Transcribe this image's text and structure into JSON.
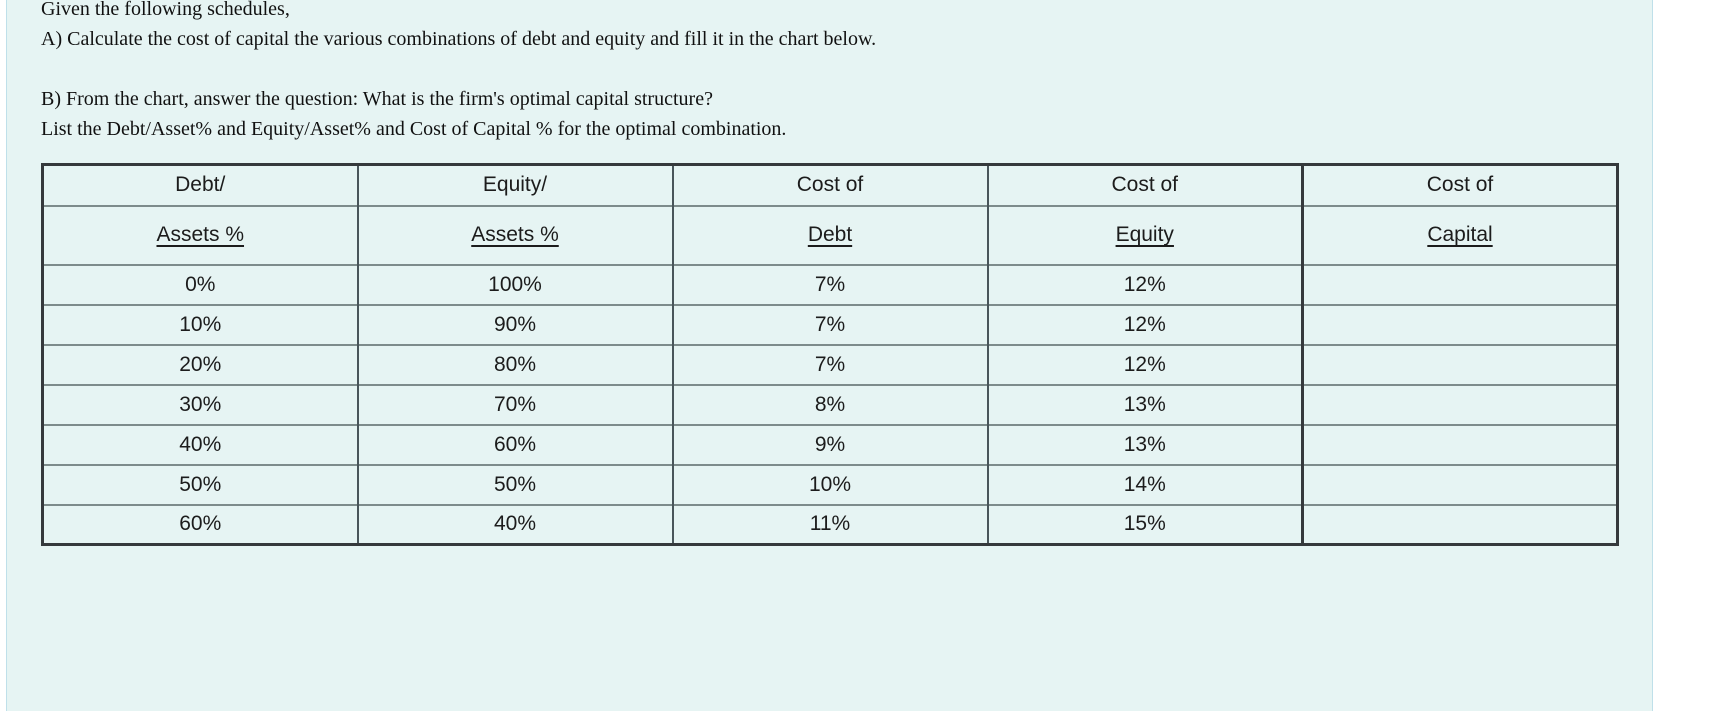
{
  "colors": {
    "panel_background": "#e6f4f3",
    "panel_edge_border": "#bfe0ea",
    "table_outer_border": "#35393c",
    "table_row_line": "#7d8b8b",
    "table_column_line": "#49555a",
    "text": "#111111"
  },
  "instructions": {
    "line1": "Given the following schedules,",
    "line2": "A) Calculate the cost of capital the various combinations of debt and equity and fill it in the chart below.",
    "line3": "B) From the chart, answer the question: What is the firm's optimal capital structure?",
    "line4": "List the Debt/Asset% and Equity/Asset% and Cost of Capital % for the optimal combination."
  },
  "table": {
    "headers": [
      {
        "top": "Debt/",
        "bottom": "Assets %"
      },
      {
        "top": "Equity/",
        "bottom": "Assets %"
      },
      {
        "top": "Cost of",
        "bottom": "Debt"
      },
      {
        "top": "Cost of",
        "bottom": "Equity"
      },
      {
        "top": "Cost of",
        "bottom": "Capital"
      }
    ],
    "rows": [
      {
        "debt_assets": "0%",
        "equity_assets": "100%",
        "cost_of_debt": "7%",
        "cost_of_equity": "12%",
        "cost_of_capital": ""
      },
      {
        "debt_assets": "10%",
        "equity_assets": "90%",
        "cost_of_debt": "7%",
        "cost_of_equity": "12%",
        "cost_of_capital": ""
      },
      {
        "debt_assets": "20%",
        "equity_assets": "80%",
        "cost_of_debt": "7%",
        "cost_of_equity": "12%",
        "cost_of_capital": ""
      },
      {
        "debt_assets": "30%",
        "equity_assets": "70%",
        "cost_of_debt": "8%",
        "cost_of_equity": "13%",
        "cost_of_capital": ""
      },
      {
        "debt_assets": "40%",
        "equity_assets": "60%",
        "cost_of_debt": "9%",
        "cost_of_equity": "13%",
        "cost_of_capital": ""
      },
      {
        "debt_assets": "50%",
        "equity_assets": "50%",
        "cost_of_debt": "10%",
        "cost_of_equity": "14%",
        "cost_of_capital": ""
      },
      {
        "debt_assets": "60%",
        "equity_assets": "40%",
        "cost_of_debt": "11%",
        "cost_of_equity": "15%",
        "cost_of_capital": ""
      }
    ]
  }
}
